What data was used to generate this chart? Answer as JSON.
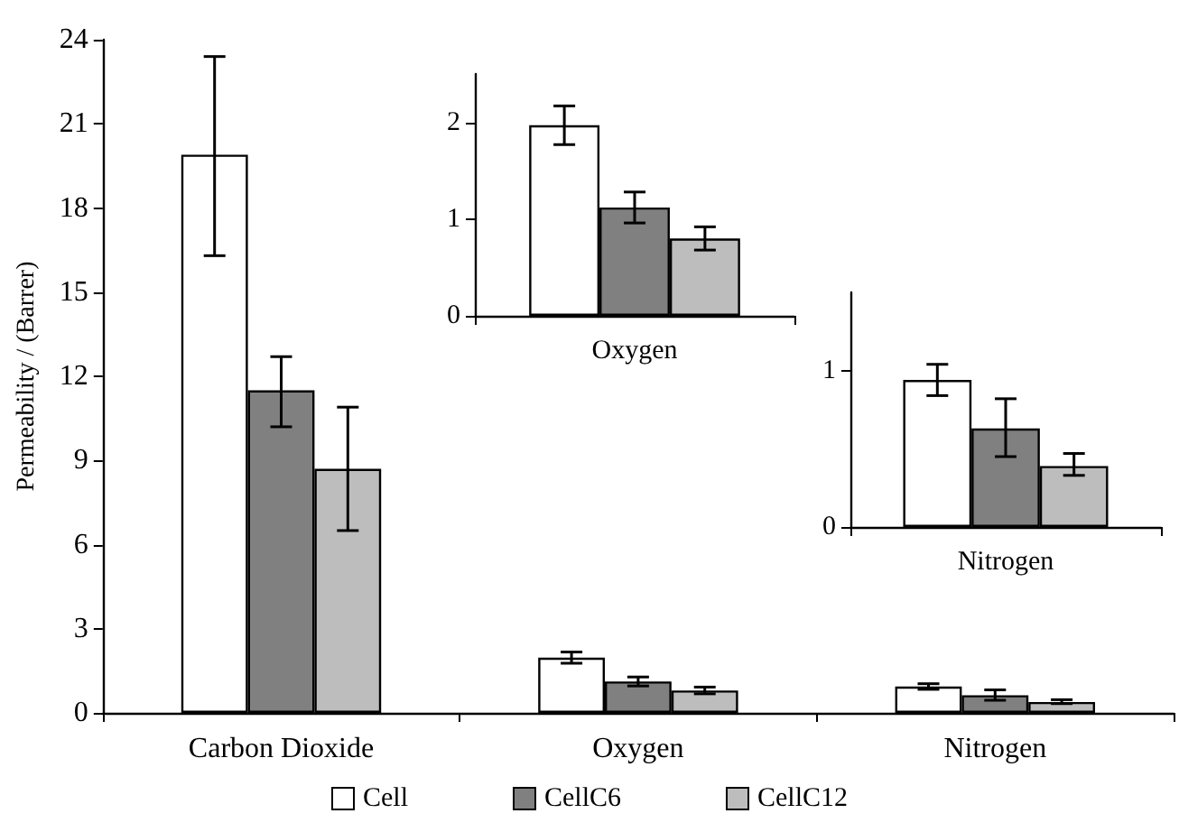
{
  "chart_data": [
    {
      "type": "bar",
      "ylabel": "Permeability / (Barrer)",
      "categories": [
        "Carbon Dioxide",
        "Oxygen",
        "Nitrogen"
      ],
      "ylim": [
        0,
        24
      ],
      "yticks": [
        0,
        3,
        6,
        9,
        12,
        15,
        18,
        21,
        24
      ],
      "legend": "bottom",
      "series": [
        {
          "name": "Cell",
          "color": "#ffffff",
          "values": [
            19.9,
            1.97,
            0.94
          ],
          "errors": [
            [
              16.3,
              23.4
            ],
            [
              1.77,
              2.17
            ],
            [
              0.84,
              1.04
            ]
          ]
        },
        {
          "name": "CellC6",
          "color": "#808080",
          "values": [
            11.5,
            1.12,
            0.63
          ],
          "errors": [
            [
              10.2,
              12.7
            ],
            [
              0.96,
              1.28
            ],
            [
              0.45,
              0.82
            ]
          ]
        },
        {
          "name": "CellC12",
          "color": "#bdbdbd",
          "values": [
            8.7,
            0.8,
            0.39
          ],
          "errors": [
            [
              6.5,
              10.9
            ],
            [
              0.68,
              0.92
            ],
            [
              0.33,
              0.47
            ]
          ]
        }
      ]
    },
    {
      "type": "bar",
      "categories": [
        "Oxygen"
      ],
      "ylim": [
        0,
        2.5
      ],
      "yticks": [
        0,
        1,
        2
      ],
      "legend": false,
      "series": [
        {
          "color": "#ffffff",
          "values": [
            1.97
          ],
          "errors": [
            [
              1.77,
              2.17
            ]
          ]
        },
        {
          "color": "#808080",
          "values": [
            1.12
          ],
          "errors": [
            [
              0.96,
              1.28
            ]
          ]
        },
        {
          "color": "#bdbdbd",
          "values": [
            0.8
          ],
          "errors": [
            [
              0.68,
              0.92
            ]
          ]
        }
      ]
    },
    {
      "type": "bar",
      "categories": [
        "Nitrogen"
      ],
      "ylim": [
        0,
        1.5
      ],
      "yticks": [
        0,
        1
      ],
      "legend": false,
      "series": [
        {
          "color": "#ffffff",
          "values": [
            0.94
          ],
          "errors": [
            [
              0.84,
              1.04
            ]
          ]
        },
        {
          "color": "#808080",
          "values": [
            0.63
          ],
          "errors": [
            [
              0.45,
              0.82
            ]
          ]
        },
        {
          "color": "#bdbdbd",
          "values": [
            0.39
          ],
          "errors": [
            [
              0.33,
              0.47
            ]
          ]
        }
      ]
    }
  ]
}
